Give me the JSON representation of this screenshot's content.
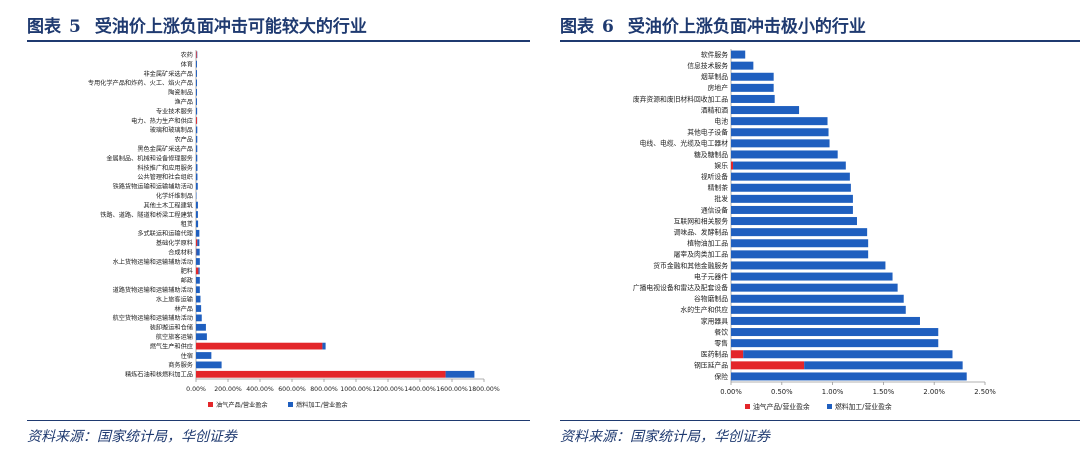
{
  "left": {
    "title_prefix": "图表",
    "title_num": "5",
    "title_text": "受油价上涨负面冲击可能较大的行业",
    "source": "资料来源：国家统计局，华创证券"
  },
  "right": {
    "title_prefix": "图表",
    "title_num": "6",
    "title_text": "受油价上涨负面冲击极小的行业",
    "source": "资料来源：国家统计局，华创证券"
  },
  "colors": {
    "oil": "#e3262a",
    "fuel": "#1f5fbf",
    "axis": "#1f3a70"
  },
  "chart_data": [
    {
      "type": "bar",
      "orientation": "horizontal",
      "stacked": true,
      "categories": [
        "农药",
        "体育",
        "非金属矿采选产品",
        "专用化学产品和炸药、火工、焰火产品",
        "陶瓷制品",
        "渔产品",
        "专业技术服务",
        "电力、热力生产和供应",
        "玻璃和玻璃制品",
        "农产品",
        "黑色金属矿采选产品",
        "金属制品、机械和设备修理服务",
        "科技推广和应用服务",
        "公共管理和社会组织",
        "铁路货物运输和运输辅助活动",
        "化学纤维制品",
        "其他土木工程建筑",
        "铁路、道路、隧道和桥梁工程建筑",
        "租赁",
        "多式联运和运输代理",
        "基础化学原料",
        "合成材料",
        "水上货物运输和运输辅助活动",
        "肥料",
        "邮政",
        "道路货物运输和运输辅助活动",
        "水上旅客运输",
        "林产品",
        "航空货物运输和运输辅助活动",
        "装卸搬运和仓储",
        "航空旅客运输",
        "燃气生产和供应",
        "住宿",
        "商务服务",
        "精炼石油和核燃料加工品"
      ],
      "series": [
        {
          "name": "油气产品/营业盈余",
          "values": [
            5,
            0,
            0,
            0,
            0,
            0,
            0,
            6,
            0,
            0,
            0,
            0,
            0,
            0,
            0,
            0,
            0,
            0,
            0,
            0,
            8,
            2,
            0,
            15,
            0,
            0,
            0,
            0,
            0,
            0,
            0,
            790,
            0,
            0,
            1560
          ]
        },
        {
          "name": "燃料加工/营业盈余",
          "values": [
            3,
            6,
            6,
            6,
            6,
            6,
            7,
            1,
            8,
            8,
            8,
            8,
            9,
            9,
            11,
            3,
            12,
            12,
            13,
            21,
            13,
            21,
            24,
            8,
            24,
            24,
            28,
            32,
            36,
            62,
            68,
            20,
            96,
            160,
            180
          ]
        }
      ],
      "xlim": [
        0,
        1800
      ],
      "x_ticks": [
        "0.00%",
        "200.00%",
        "400.00%",
        "600.00%",
        "800.00%",
        "1000.00%",
        "1200.00%",
        "1400.00%",
        "1600.00%",
        "1800.00%"
      ],
      "legend": "bottom",
      "unit": "%"
    },
    {
      "type": "bar",
      "orientation": "horizontal",
      "stacked": true,
      "categories": [
        "软件服务",
        "信息技术服务",
        "烟草制品",
        "房地产",
        "废弃资源和废旧材料回收加工品",
        "酒精和酒",
        "电池",
        "其他电子设备",
        "电线、电缆、光缆及电工器材",
        "糖及糖制品",
        "娱乐",
        "视听设备",
        "精制茶",
        "批发",
        "通信设备",
        "互联网和相关服务",
        "调味品、发酵制品",
        "植物油加工品",
        "屠宰及肉类加工品",
        "货币金融和其他金融服务",
        "电子元器件",
        "广播电视设备和雷达及配套设备",
        "谷物磨制品",
        "水的生产和供应",
        "家用器具",
        "餐饮",
        "零售",
        "医药制品",
        "钢压延产品",
        "保险"
      ],
      "series": [
        {
          "name": "油气产品/营业盈余",
          "values": [
            0,
            0,
            0,
            0,
            0,
            0,
            0,
            0,
            0,
            0,
            0.02,
            0,
            0,
            0,
            0,
            0,
            0,
            0,
            0,
            0,
            0,
            0,
            0,
            0,
            0,
            0,
            0,
            0.12,
            0.72,
            0
          ]
        },
        {
          "name": "燃料加工/营业盈余",
          "values": [
            0.14,
            0.22,
            0.42,
            0.42,
            0.43,
            0.67,
            0.95,
            0.96,
            0.97,
            1.05,
            1.11,
            1.17,
            1.18,
            1.2,
            1.2,
            1.24,
            1.34,
            1.35,
            1.35,
            1.52,
            1.59,
            1.64,
            1.7,
            1.72,
            1.86,
            2.04,
            2.04,
            2.06,
            1.56,
            2.32
          ]
        }
      ],
      "xlim": [
        0,
        2.5
      ],
      "x_ticks": [
        "0.00%",
        "0.50%",
        "1.00%",
        "1.50%",
        "2.00%",
        "2.50%"
      ],
      "legend": "bottom",
      "unit": "%"
    }
  ]
}
